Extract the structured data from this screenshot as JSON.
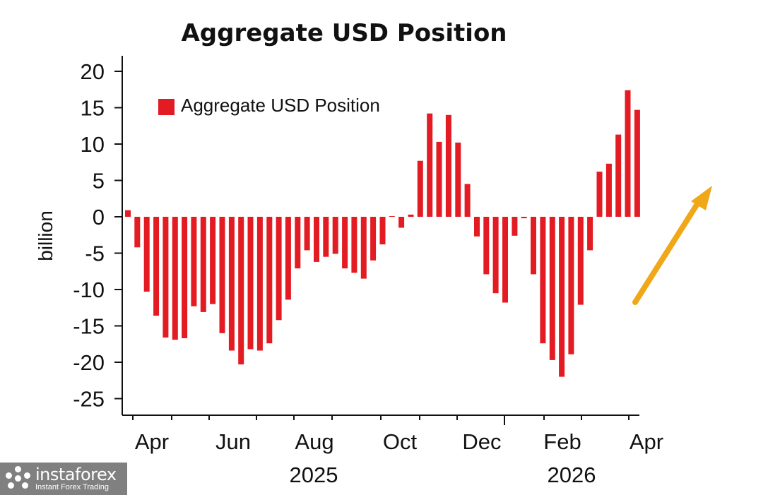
{
  "chart_data": {
    "type": "bar",
    "title": "Aggregate USD Position",
    "ylabel": "billion",
    "ylim": [
      -27,
      22
    ],
    "yticks": [
      20,
      15,
      10,
      5,
      0,
      -5,
      -10,
      -15,
      -20,
      -25
    ],
    "month_ticks": [
      "Apr",
      "Jun",
      "Aug",
      "Oct",
      "Dec",
      "Feb",
      "Apr"
    ],
    "year_labels": [
      "2025",
      "2026"
    ],
    "legend": "Aggregate USD Position",
    "color": "#e31b23",
    "arrow_color": "#f0a818",
    "series": [
      {
        "name": "Aggregate USD Position",
        "values": [
          0.9,
          -4.2,
          -10.3,
          -13.6,
          -16.6,
          -16.9,
          -16.7,
          -12.3,
          -13.1,
          -12.0,
          -16.0,
          -18.4,
          -20.3,
          -18.2,
          -18.4,
          -17.4,
          -14.2,
          -11.4,
          -7.1,
          -4.6,
          -6.2,
          -5.5,
          -5.1,
          -7.1,
          -7.7,
          -8.5,
          -6.0,
          -3.8,
          0.1,
          -1.5,
          0.3,
          7.7,
          14.2,
          10.3,
          14.0,
          10.2,
          4.5,
          -2.7,
          -7.9,
          -10.5,
          -11.8,
          -2.6,
          -0.2,
          -7.9,
          -17.4,
          -19.7,
          -22.0,
          -18.9,
          -12.1,
          -4.6,
          6.2,
          7.3,
          11.3,
          17.4,
          14.7
        ]
      }
    ]
  },
  "watermark": {
    "name": "instaforex",
    "tagline": "Instant Forex Trading"
  }
}
